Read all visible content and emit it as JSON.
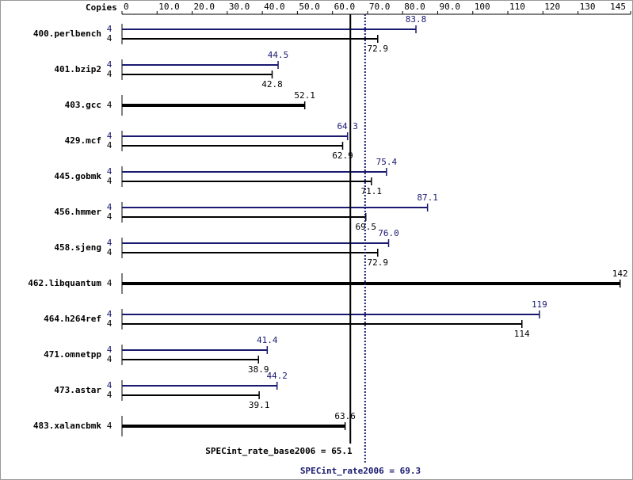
{
  "chart_data": {
    "type": "bar",
    "orientation": "horizontal",
    "copies_label": "Copies",
    "categories": [
      "400.perlbench",
      "401.bzip2",
      "403.gcc",
      "429.mcf",
      "445.gobmk",
      "456.hmmer",
      "458.sjeng",
      "462.libquantum",
      "464.h264ref",
      "471.omnetpp",
      "473.astar",
      "483.xalancbmk"
    ],
    "series": [
      {
        "name": "SPECint_rate2006",
        "color": "#191970",
        "values": [
          83.8,
          44.5,
          null,
          64.3,
          75.4,
          87.1,
          76,
          null,
          119,
          41.4,
          44.2,
          null
        ],
        "value_labels": [
          "83.8",
          "44.5",
          null,
          "64.3",
          "75.4",
          "87.1",
          "76.0",
          null,
          "119",
          "41.4",
          "44.2",
          null
        ],
        "copies": [
          4,
          4,
          null,
          4,
          4,
          4,
          4,
          null,
          4,
          4,
          4,
          null
        ]
      },
      {
        "name": "SPECint_rate_base2006",
        "color": "#000000",
        "values": [
          72.9,
          42.8,
          52.1,
          62.9,
          71.1,
          69.5,
          72.9,
          142,
          114,
          38.9,
          39.1,
          63.6
        ],
        "copies": [
          4,
          4,
          4,
          4,
          4,
          4,
          4,
          4,
          4,
          4,
          4,
          4
        ]
      }
    ],
    "reference_lines": [
      {
        "label": "SPECint_rate_base2006 =",
        "value": 65.1,
        "color": "#000000",
        "style": "solid"
      },
      {
        "label": "SPECint_rate2006 =",
        "value": 69.3,
        "color": "#191970",
        "style": "dotted"
      }
    ],
    "xlim": [
      0,
      145
    ],
    "xticks": [
      0,
      {
        "value": 10,
        "label": "10.0"
      },
      {
        "value": 20,
        "label": "20.0"
      },
      {
        "value": 30,
        "label": "30.0"
      },
      {
        "value": 40,
        "label": "40.0"
      },
      {
        "value": 50,
        "label": "50.0"
      },
      {
        "value": 60,
        "label": "60.0"
      },
      {
        "value": 70,
        "label": "70.0"
      },
      {
        "value": 80,
        "label": "80.0"
      },
      {
        "value": 90,
        "label": "90.0"
      },
      100,
      110,
      120,
      130,
      145
    ]
  }
}
